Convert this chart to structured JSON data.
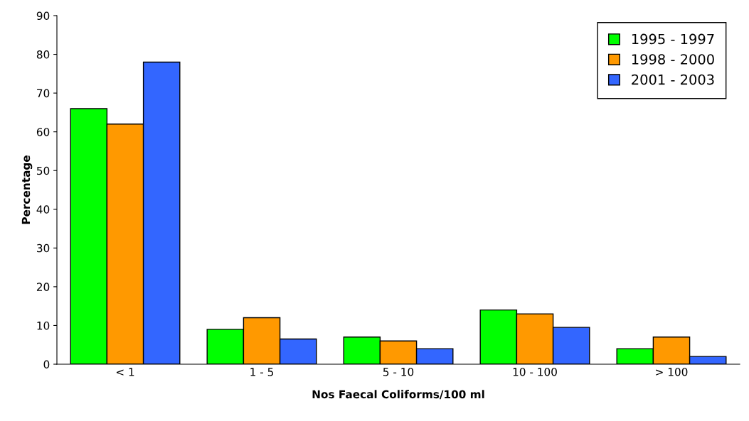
{
  "chart_data": {
    "type": "bar",
    "xlabel": "Nos Faecal Coliforms/100 ml",
    "ylabel": "Percentage",
    "categories": [
      "< 1",
      "1 - 5",
      "5 - 10",
      "10 - 100",
      "> 100"
    ],
    "series": [
      {
        "name": "1995 - 1997",
        "color": "#00ff00",
        "values": [
          66,
          9,
          7,
          14,
          4
        ]
      },
      {
        "name": "1998 - 2000",
        "color": "#ff9900",
        "values": [
          62,
          12,
          6,
          13,
          7
        ]
      },
      {
        "name": "2001 - 2003",
        "color": "#3366ff",
        "values": [
          78,
          6.5,
          4,
          9.5,
          2
        ]
      }
    ],
    "ylim": [
      0,
      90
    ],
    "yticks": [
      0,
      10,
      20,
      30,
      40,
      50,
      60,
      70,
      80,
      90
    ],
    "grid": false,
    "legend": "top right"
  }
}
